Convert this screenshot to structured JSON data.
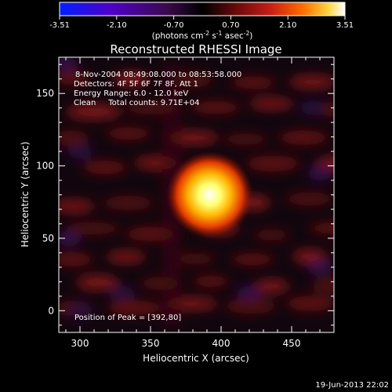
{
  "chart_data": {
    "type": "heatmap",
    "title": "Reconstructed RHESSI Image",
    "xlabel": "Heliocentric X (arcsec)",
    "ylabel": "Heliocentric Y (arcsec)",
    "xlim": [
      285,
      480
    ],
    "ylim": [
      -15,
      175
    ],
    "x_ticks": [
      300,
      350,
      400,
      450
    ],
    "y_ticks": [
      0,
      50,
      100,
      150
    ],
    "colorbar": {
      "min": -3.51,
      "max": 3.51,
      "ticks": [
        "-3.51",
        "-2.10",
        "-0.70",
        "0.70",
        "2.10",
        "3.51"
      ],
      "unit_main": "(photons cm",
      "unit_sup1": "-2",
      "unit_mid": " s",
      "unit_sup2": "-1",
      "unit_mid2": " asec",
      "unit_sup3": "-2",
      "unit_end": ")"
    },
    "annotations": [
      "8-Nov-2004 08:49:08.000 to 08:53:58.000",
      "Detectors: 4F 5F 6F 7F 8F, Att 1",
      "Energy Range: 6.0 - 12.0 keV",
      "Clean     Total counts: 9.71E+04"
    ],
    "peak": {
      "label": "Position of Peak = [392,80]",
      "x": 392,
      "y": 80,
      "value": 3.51
    },
    "source_radius_arcsec": 14,
    "colormap": [
      "#0020ff",
      "#5000c8",
      "#3a0a4a",
      "#000000",
      "#6a0a0a",
      "#c81e14",
      "#ff6a00",
      "#ffd23c",
      "#ffffff"
    ]
  },
  "timestamp": "19-Jun-2013 22:02"
}
